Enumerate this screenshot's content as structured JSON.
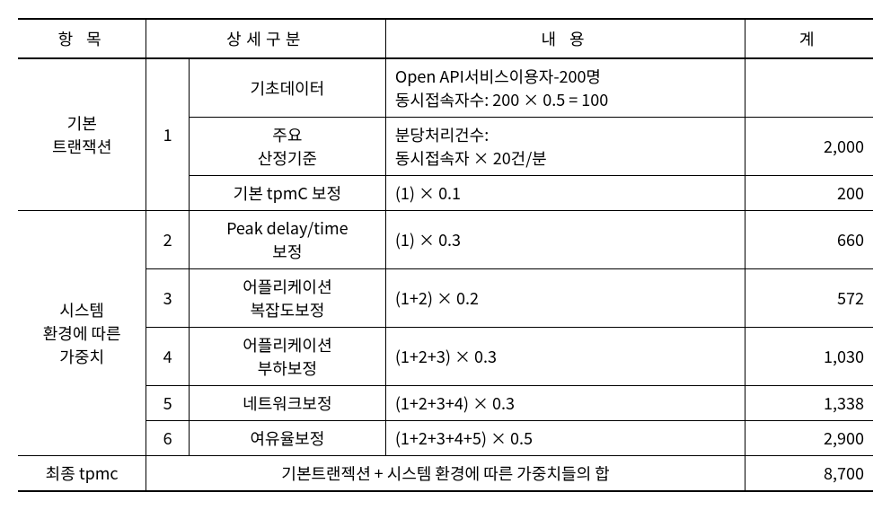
{
  "headers": {
    "item": "항 목",
    "detail": "상세구분",
    "content": "내 용",
    "total": "계"
  },
  "section1": {
    "label": "기본\n트랜잭션",
    "num": "1",
    "rows": [
      {
        "detail": "기초데이터",
        "content1": "Open API서비스이용자-200명",
        "content2": "동시접속자수: 200 × 0.5 = 100",
        "total": ""
      },
      {
        "detail1": "주요",
        "detail2": "산정기준",
        "content1": "분당처리건수:",
        "content2": "동시접속자 × 20건/분",
        "total": "2,000"
      },
      {
        "detail": "기본 tpmC 보정",
        "content": "(1) × 0.1",
        "total": "200"
      }
    ]
  },
  "section2": {
    "label": "시스템\n환경에 따른\n가중치",
    "rows": [
      {
        "num": "2",
        "detail1": "Peak delay/time",
        "detail2": "보정",
        "content": "(1) × 0.3",
        "total": "660"
      },
      {
        "num": "3",
        "detail1": "어플리케이션",
        "detail2": "복잡도보정",
        "content": "(1+2) × 0.2",
        "total": "572"
      },
      {
        "num": "4",
        "detail1": "어플리케이션",
        "detail2": "부하보정",
        "content": "(1+2+3) × 0.3",
        "total": "1,030"
      },
      {
        "num": "5",
        "detail": "네트워크보정",
        "content": "(1+2+3+4) × 0.3",
        "total": "1,338"
      },
      {
        "num": "6",
        "detail": "여유율보정",
        "content": "(1+2+3+4+5) × 0.5",
        "total": "2,900"
      }
    ]
  },
  "final": {
    "label": "최종 tpmc",
    "content": "기본트랜젝션 + 시스템 환경에 따른 가중치들의 합",
    "total": "8,700"
  }
}
